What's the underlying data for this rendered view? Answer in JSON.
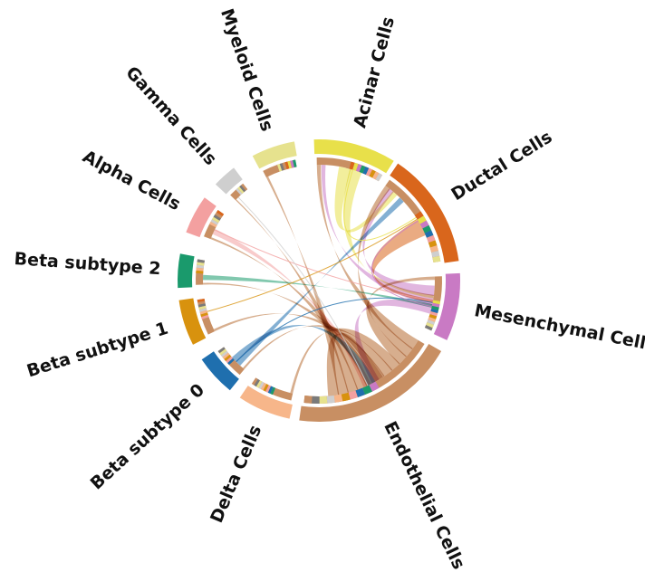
{
  "title": "",
  "groups": [
    {
      "label": "Acinar Cells",
      "color": "#e8e04a"
    },
    {
      "label": "Ductal Cells",
      "color": "#d9661c"
    },
    {
      "label": "Mesenchymal Cells",
      "color": "#c97ac4"
    },
    {
      "label": "Endothelial Cells",
      "color": "#c88f63"
    },
    {
      "label": "Delta Cells",
      "color": "#f7b68a"
    },
    {
      "label": "Beta subtype 0",
      "color": "#1f6fae"
    },
    {
      "label": "Beta subtype 1",
      "color": "#d8920e"
    },
    {
      "label": "Beta subtype 2",
      "color": "#1a9a6c"
    },
    {
      "label": "Alpha Cells",
      "color": "#f3a0a0"
    },
    {
      "label": "Gamma Cells",
      "color": "#cfcfcf"
    },
    {
      "label": "Myeloid Cells",
      "color": "#e6e28e"
    }
  ],
  "links": [
    {
      "from": "Endothelial Cells",
      "to": "Acinar Cells",
      "color": "#c88f63"
    },
    {
      "from": "Endothelial Cells",
      "to": "Ductal Cells",
      "color": "#c88f63"
    },
    {
      "from": "Endothelial Cells",
      "to": "Mesenchymal Cells",
      "color": "#c88f63"
    },
    {
      "from": "Endothelial Cells",
      "to": "Delta Cells",
      "color": "#c88f63"
    },
    {
      "from": "Endothelial Cells",
      "to": "Beta subtype 0",
      "color": "#c88f63"
    },
    {
      "from": "Endothelial Cells",
      "to": "Beta subtype 1",
      "color": "#c88f63"
    },
    {
      "from": "Endothelial Cells",
      "to": "Beta subtype 2",
      "color": "#c88f63"
    },
    {
      "from": "Endothelial Cells",
      "to": "Alpha Cells",
      "color": "#c88f63"
    },
    {
      "from": "Endothelial Cells",
      "to": "Gamma Cells",
      "color": "#c88f63"
    },
    {
      "from": "Endothelial Cells",
      "to": "Myeloid Cells",
      "color": "#c88f63"
    },
    {
      "from": "Endothelial Cells",
      "to": "Endothelial Cells",
      "color": "#c88f63"
    },
    {
      "from": "Mesenchymal Cells",
      "to": "Ductal Cells",
      "color": "#c97ac4"
    },
    {
      "from": "Mesenchymal Cells",
      "to": "Acinar Cells",
      "color": "#c97ac4"
    },
    {
      "from": "Mesenchymal Cells",
      "to": "Endothelial Cells",
      "color": "#c97ac4"
    },
    {
      "from": "Acinar Cells",
      "to": "Ductal Cells",
      "color": "#e8e04a"
    },
    {
      "from": "Acinar Cells",
      "to": "Mesenchymal Cells",
      "color": "#e8e04a"
    },
    {
      "from": "Ductal Cells",
      "to": "Mesenchymal Cells",
      "color": "#d9661c"
    },
    {
      "from": "Beta subtype 0",
      "to": "Ductal Cells",
      "color": "#1f6fae"
    },
    {
      "from": "Beta subtype 0",
      "to": "Endothelial Cells",
      "color": "#1f6fae"
    },
    {
      "from": "Alpha Cells",
      "to": "Endothelial Cells",
      "color": "#f3a0a0"
    },
    {
      "from": "Beta subtype 2",
      "to": "Mesenchymal Cells",
      "color": "#1a9a6c"
    }
  ]
}
